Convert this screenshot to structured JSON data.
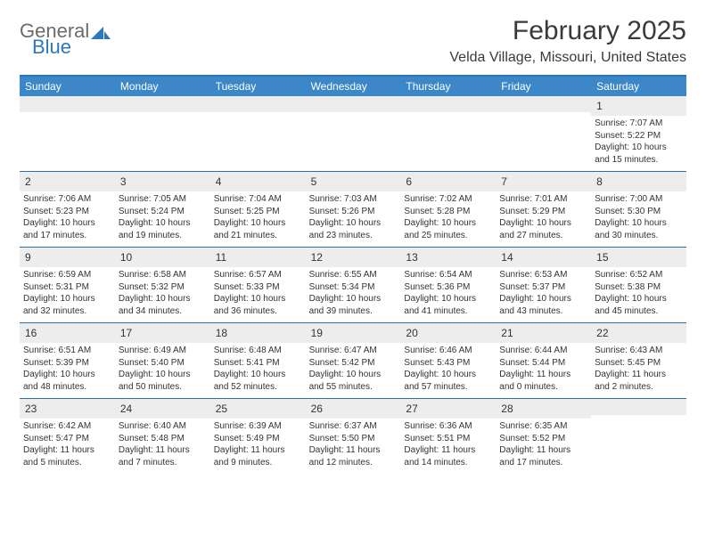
{
  "logo": {
    "general": "General",
    "blue": "Blue"
  },
  "title": "February 2025",
  "location": "Velda Village, Missouri, United States",
  "colors": {
    "header_bg": "#3b87c8",
    "header_border": "#2f77bb",
    "week_divider": "#2f6fa8",
    "daynum_bg": "#ededed",
    "text": "#333333",
    "logo_gray": "#6b6b6b",
    "logo_blue": "#2f77bb"
  },
  "day_names": [
    "Sunday",
    "Monday",
    "Tuesday",
    "Wednesday",
    "Thursday",
    "Friday",
    "Saturday"
  ],
  "weeks": [
    [
      {
        "n": "",
        "sr": "",
        "ss": "",
        "dl": ""
      },
      {
        "n": "",
        "sr": "",
        "ss": "",
        "dl": ""
      },
      {
        "n": "",
        "sr": "",
        "ss": "",
        "dl": ""
      },
      {
        "n": "",
        "sr": "",
        "ss": "",
        "dl": ""
      },
      {
        "n": "",
        "sr": "",
        "ss": "",
        "dl": ""
      },
      {
        "n": "",
        "sr": "",
        "ss": "",
        "dl": ""
      },
      {
        "n": "1",
        "sr": "Sunrise: 7:07 AM",
        "ss": "Sunset: 5:22 PM",
        "dl": "Daylight: 10 hours and 15 minutes."
      }
    ],
    [
      {
        "n": "2",
        "sr": "Sunrise: 7:06 AM",
        "ss": "Sunset: 5:23 PM",
        "dl": "Daylight: 10 hours and 17 minutes."
      },
      {
        "n": "3",
        "sr": "Sunrise: 7:05 AM",
        "ss": "Sunset: 5:24 PM",
        "dl": "Daylight: 10 hours and 19 minutes."
      },
      {
        "n": "4",
        "sr": "Sunrise: 7:04 AM",
        "ss": "Sunset: 5:25 PM",
        "dl": "Daylight: 10 hours and 21 minutes."
      },
      {
        "n": "5",
        "sr": "Sunrise: 7:03 AM",
        "ss": "Sunset: 5:26 PM",
        "dl": "Daylight: 10 hours and 23 minutes."
      },
      {
        "n": "6",
        "sr": "Sunrise: 7:02 AM",
        "ss": "Sunset: 5:28 PM",
        "dl": "Daylight: 10 hours and 25 minutes."
      },
      {
        "n": "7",
        "sr": "Sunrise: 7:01 AM",
        "ss": "Sunset: 5:29 PM",
        "dl": "Daylight: 10 hours and 27 minutes."
      },
      {
        "n": "8",
        "sr": "Sunrise: 7:00 AM",
        "ss": "Sunset: 5:30 PM",
        "dl": "Daylight: 10 hours and 30 minutes."
      }
    ],
    [
      {
        "n": "9",
        "sr": "Sunrise: 6:59 AM",
        "ss": "Sunset: 5:31 PM",
        "dl": "Daylight: 10 hours and 32 minutes."
      },
      {
        "n": "10",
        "sr": "Sunrise: 6:58 AM",
        "ss": "Sunset: 5:32 PM",
        "dl": "Daylight: 10 hours and 34 minutes."
      },
      {
        "n": "11",
        "sr": "Sunrise: 6:57 AM",
        "ss": "Sunset: 5:33 PM",
        "dl": "Daylight: 10 hours and 36 minutes."
      },
      {
        "n": "12",
        "sr": "Sunrise: 6:55 AM",
        "ss": "Sunset: 5:34 PM",
        "dl": "Daylight: 10 hours and 39 minutes."
      },
      {
        "n": "13",
        "sr": "Sunrise: 6:54 AM",
        "ss": "Sunset: 5:36 PM",
        "dl": "Daylight: 10 hours and 41 minutes."
      },
      {
        "n": "14",
        "sr": "Sunrise: 6:53 AM",
        "ss": "Sunset: 5:37 PM",
        "dl": "Daylight: 10 hours and 43 minutes."
      },
      {
        "n": "15",
        "sr": "Sunrise: 6:52 AM",
        "ss": "Sunset: 5:38 PM",
        "dl": "Daylight: 10 hours and 45 minutes."
      }
    ],
    [
      {
        "n": "16",
        "sr": "Sunrise: 6:51 AM",
        "ss": "Sunset: 5:39 PM",
        "dl": "Daylight: 10 hours and 48 minutes."
      },
      {
        "n": "17",
        "sr": "Sunrise: 6:49 AM",
        "ss": "Sunset: 5:40 PM",
        "dl": "Daylight: 10 hours and 50 minutes."
      },
      {
        "n": "18",
        "sr": "Sunrise: 6:48 AM",
        "ss": "Sunset: 5:41 PM",
        "dl": "Daylight: 10 hours and 52 minutes."
      },
      {
        "n": "19",
        "sr": "Sunrise: 6:47 AM",
        "ss": "Sunset: 5:42 PM",
        "dl": "Daylight: 10 hours and 55 minutes."
      },
      {
        "n": "20",
        "sr": "Sunrise: 6:46 AM",
        "ss": "Sunset: 5:43 PM",
        "dl": "Daylight: 10 hours and 57 minutes."
      },
      {
        "n": "21",
        "sr": "Sunrise: 6:44 AM",
        "ss": "Sunset: 5:44 PM",
        "dl": "Daylight: 11 hours and 0 minutes."
      },
      {
        "n": "22",
        "sr": "Sunrise: 6:43 AM",
        "ss": "Sunset: 5:45 PM",
        "dl": "Daylight: 11 hours and 2 minutes."
      }
    ],
    [
      {
        "n": "23",
        "sr": "Sunrise: 6:42 AM",
        "ss": "Sunset: 5:47 PM",
        "dl": "Daylight: 11 hours and 5 minutes."
      },
      {
        "n": "24",
        "sr": "Sunrise: 6:40 AM",
        "ss": "Sunset: 5:48 PM",
        "dl": "Daylight: 11 hours and 7 minutes."
      },
      {
        "n": "25",
        "sr": "Sunrise: 6:39 AM",
        "ss": "Sunset: 5:49 PM",
        "dl": "Daylight: 11 hours and 9 minutes."
      },
      {
        "n": "26",
        "sr": "Sunrise: 6:37 AM",
        "ss": "Sunset: 5:50 PM",
        "dl": "Daylight: 11 hours and 12 minutes."
      },
      {
        "n": "27",
        "sr": "Sunrise: 6:36 AM",
        "ss": "Sunset: 5:51 PM",
        "dl": "Daylight: 11 hours and 14 minutes."
      },
      {
        "n": "28",
        "sr": "Sunrise: 6:35 AM",
        "ss": "Sunset: 5:52 PM",
        "dl": "Daylight: 11 hours and 17 minutes."
      },
      {
        "n": "",
        "sr": "",
        "ss": "",
        "dl": ""
      }
    ]
  ]
}
